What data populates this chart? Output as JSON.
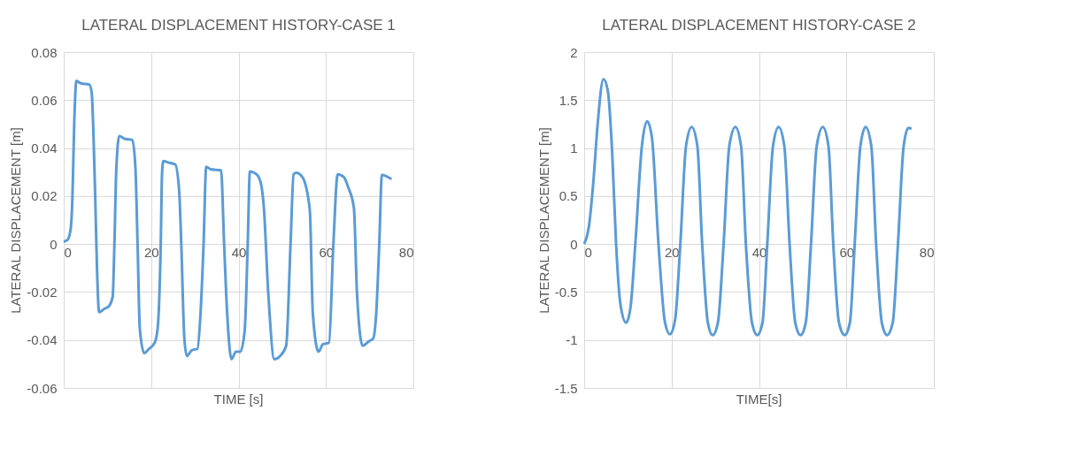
{
  "chart_data": [
    {
      "type": "line",
      "title": "LATERAL DISPLACEMENT HISTORY-CASE 1",
      "xlabel": "TIME [s]",
      "ylabel": "LATERAL DISPLACEMENT [m]",
      "xlim": [
        0,
        80
      ],
      "xticks": [
        0,
        20,
        40,
        60,
        80
      ],
      "ylim": [
        -0.06,
        0.08
      ],
      "yticks": [
        -0.06,
        -0.04,
        -0.02,
        0,
        0.02,
        0.04,
        0.06,
        0.08
      ],
      "grid": true,
      "x": [
        0,
        0.9,
        1.6,
        2.0,
        2.4,
        2.9,
        3.9,
        5.9,
        6.4,
        6.8,
        7.2,
        7.6,
        8.1,
        9.3,
        10.3,
        11.2,
        11.6,
        12.0,
        12.7,
        14.1,
        15.7,
        16.4,
        16.9,
        17.4,
        18.4,
        19.5,
        20.8,
        21.5,
        22.2,
        22.5,
        22.8,
        23.9,
        25.5,
        26.4,
        26.9,
        27.6,
        28.2,
        29.3,
        30.6,
        31.3,
        32.0,
        32.6,
        33.6,
        36.0,
        36.7,
        37.4,
        38.4,
        39.4,
        40.4,
        41.4,
        42.1,
        42.6,
        44.1,
        45.1,
        45.8,
        46.8,
        48.2,
        49.5,
        50.9,
        51.9,
        52.6,
        53.2,
        54.6,
        56.3,
        57.0,
        58.3,
        59.3,
        60.7,
        61.7,
        62.7,
        64.1,
        65.1,
        66.4,
        67.1,
        68.4,
        69.8,
        70.8,
        71.5,
        72.2,
        72.8,
        75.0
      ],
      "series": [
        {
          "color": "#5b9bd5",
          "values": [
            0.001,
            0.0018,
            0.0065,
            0.02,
            0.05,
            0.068,
            0.067,
            0.0664,
            0.063,
            0.046,
            0.02,
            -0.0094,
            -0.0284,
            -0.027,
            -0.026,
            -0.022,
            0,
            0.0297,
            0.045,
            0.0438,
            0.0434,
            0.032,
            0,
            -0.035,
            -0.0455,
            -0.0437,
            -0.0412,
            -0.035,
            0,
            0.0297,
            0.0346,
            0.034,
            0.0332,
            0.0224,
            0,
            -0.0394,
            -0.0467,
            -0.0443,
            -0.0437,
            -0.029,
            0,
            0.0322,
            0.0312,
            0.0307,
            0,
            -0.029,
            -0.048,
            -0.0449,
            -0.0449,
            -0.0363,
            0,
            0.0303,
            0.0291,
            0.0254,
            0.015,
            -0.0204,
            -0.048,
            -0.0467,
            -0.0424,
            0,
            0.0291,
            0.0297,
            0.0279,
            0.0144,
            -0.029,
            -0.0449,
            -0.0418,
            -0.0412,
            0,
            0.0291,
            0.0279,
            0.0236,
            0.015,
            -0.0204,
            -0.0424,
            -0.0406,
            -0.0394,
            -0.029,
            0,
            0.0288,
            0.027
          ]
        }
      ]
    },
    {
      "type": "line",
      "title": "LATERAL DISPLACEMENT HISTORY-CASE 2",
      "xlabel": "TIME[s]",
      "ylabel": "LATERAL DISPLACEMENT [m]",
      "xlim": [
        0,
        80
      ],
      "xticks": [
        0,
        20,
        40,
        60,
        80
      ],
      "ylim": [
        -1.5,
        2
      ],
      "yticks": [
        -1.5,
        -1,
        -0.5,
        0,
        0.5,
        1,
        1.5,
        2
      ],
      "grid": true,
      "x": [
        0,
        1.1,
        2.1,
        3.1,
        4.4,
        5.4,
        6.4,
        7.3,
        8.3,
        9.6,
        10.6,
        11.7,
        13.2,
        14.4,
        15.5,
        17.0,
        18.5,
        19.6,
        20.8,
        22.0,
        23.3,
        24.6,
        25.9,
        27.0,
        28.3,
        29.4,
        30.6,
        31.9,
        33.2,
        34.6,
        35.9,
        37.0,
        38.4,
        39.6,
        40.8,
        41.9,
        43.2,
        44.5,
        45.8,
        47.0,
        48.3,
        49.5,
        50.7,
        51.9,
        53.2,
        54.6,
        55.9,
        57.0,
        58.3,
        59.6,
        60.8,
        61.9,
        63.2,
        64.4,
        65.7,
        66.8,
        68.1,
        69.3,
        70.6,
        71.8,
        73.1,
        74.2,
        74.9
      ],
      "series": [
        {
          "color": "#5b9bd5",
          "values": [
            0,
            0.19,
            0.65,
            1.26,
            1.72,
            1.6,
            0.96,
            0,
            -0.63,
            -0.82,
            -0.66,
            0,
            1.02,
            1.28,
            1.11,
            0,
            -0.82,
            -0.94,
            -0.79,
            0,
            1.02,
            1.22,
            1.02,
            0,
            -0.82,
            -0.95,
            -0.82,
            0,
            1.02,
            1.22,
            1.02,
            0,
            -0.82,
            -0.95,
            -0.82,
            0,
            1.02,
            1.22,
            1.02,
            0,
            -0.82,
            -0.95,
            -0.82,
            0,
            1.02,
            1.22,
            1.02,
            0,
            -0.82,
            -0.95,
            -0.82,
            0,
            1.02,
            1.22,
            1.02,
            0,
            -0.82,
            -0.95,
            -0.82,
            0,
            1.02,
            1.21,
            1.2
          ]
        }
      ]
    }
  ]
}
